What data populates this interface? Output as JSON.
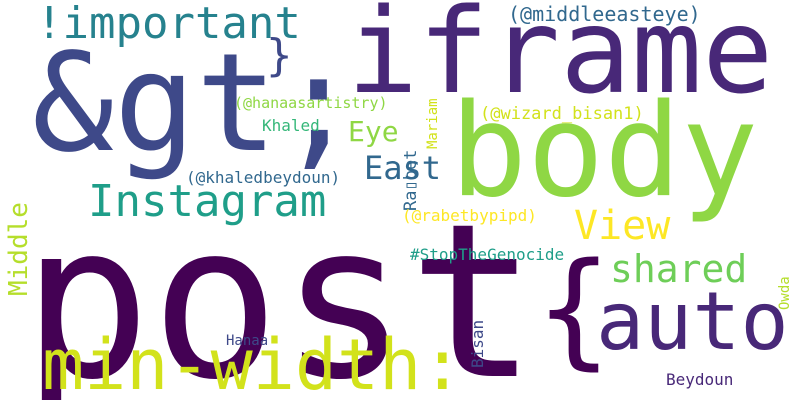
{
  "colors": {
    "dark_purple": "#440154",
    "purple": "#482878",
    "indigo": "#3e4989",
    "blue": "#31688e",
    "teal": "#26828e",
    "green_teal": "#1f9e89",
    "green": "#35b779",
    "lime": "#6ece58",
    "yellow_green": "#b5de2b",
    "yellow": "#fde725"
  },
  "words": {
    "post": "post",
    "gt": "&gt;",
    "iframe": "iframe",
    "body": "body",
    "min_width": "min-width:",
    "brace_open": "{",
    "auto": "auto",
    "important": "!important",
    "brace_close": "}",
    "instagram": "Instagram",
    "middleeasteye": "(@middleeasteye)",
    "view": "View",
    "shared": "shared",
    "middle": "Middle",
    "east": "East",
    "eye": "Eye",
    "khaled": "Khaled",
    "hanaasartistry": "(@hanaasartistry)",
    "khaledbeydoun": "(@khaledbeydoun)",
    "wizard_bisan1": "(@wizard_bisan1)",
    "rabetbypipd": "(@rabetbypipd)",
    "stopthegenocide": "#StopTheGenocide",
    "rabet": "Ra▯bet",
    "mariam": "Mariam",
    "bisan": "Bisan",
    "owda": "Owda",
    "hanaa": "Hanaa",
    "beydoun": "Beydoun"
  }
}
